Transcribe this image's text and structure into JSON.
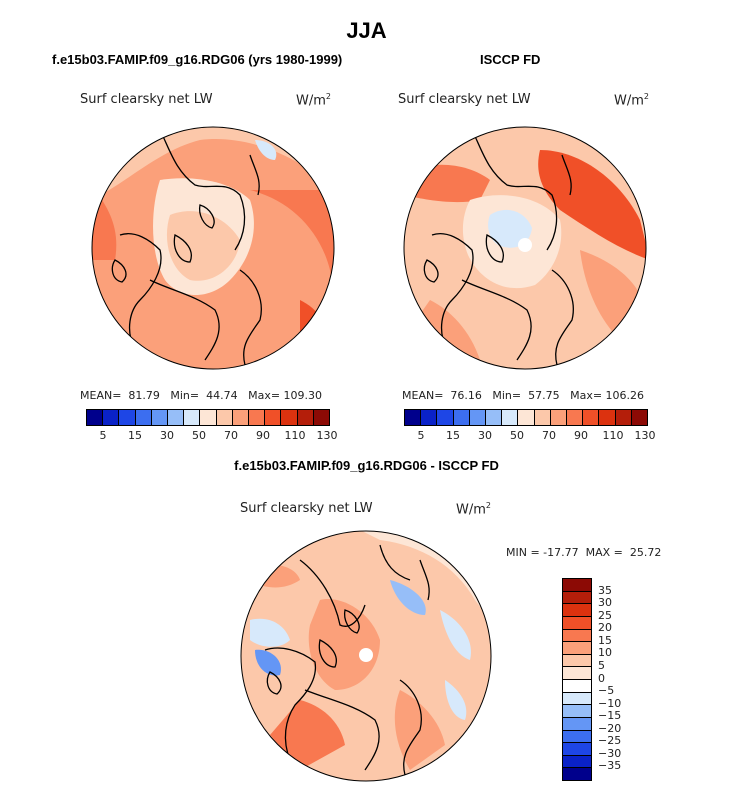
{
  "figure": {
    "title": "JJA",
    "left_panel": {
      "title": "f.e15b03.FAMIP.f09_g16.RDG06 (yrs 1980-1999)",
      "variable": "Surf clearsky net LW",
      "units": "W/m",
      "units_sup": "2",
      "stats": "MEAN=  81.79   Min=  44.74   Max= 109.30",
      "mean": 81.79,
      "min": 44.74,
      "max": 109.3
    },
    "right_panel": {
      "title": "ISCCP FD",
      "variable": "Surf clearsky net LW",
      "units": "W/m",
      "units_sup": "2",
      "stats": "MEAN=  76.16   Min=  57.75   Max= 106.26",
      "mean": 76.16,
      "min": 57.75,
      "max": 106.26
    },
    "bottom_panel": {
      "title": "f.e15b03.FAMIP.f09_g16.RDG06 - ISCCP FD",
      "variable": "Surf clearsky net LW",
      "units": "W/m",
      "units_sup": "2",
      "stats": "MIN = -17.77  MAX =  25.72",
      "min": -17.77,
      "max": 25.72
    },
    "horizontal_colorbar": {
      "tick_labels": [
        "5",
        "15",
        "30",
        "50",
        "70",
        "90",
        "110",
        "130"
      ],
      "colors": [
        "#00008c",
        "#0a22c8",
        "#1e46e6",
        "#3c6ef0",
        "#6496f5",
        "#96bef8",
        "#d7e9fb",
        "#fde6d6",
        "#fcc8aa",
        "#fba07a",
        "#f87850",
        "#f05028",
        "#dc320f",
        "#b41e0a",
        "#8c0a05"
      ]
    },
    "vertical_colorbar": {
      "tick_labels": [
        "35",
        "30",
        "25",
        "20",
        "15",
        "10",
        "5",
        "0",
        "−5",
        "−10",
        "−15",
        "−20",
        "−25",
        "−30",
        "−35"
      ],
      "colors": [
        "#8c0a05",
        "#b41e0a",
        "#dc320f",
        "#f05028",
        "#f87850",
        "#fba07a",
        "#fcc8aa",
        "#fde6d6",
        "#ffffff",
        "#d7e9fb",
        "#96bef8",
        "#6496f5",
        "#3c6ef0",
        "#1e46e6",
        "#0a22c8",
        "#00008c"
      ]
    }
  }
}
